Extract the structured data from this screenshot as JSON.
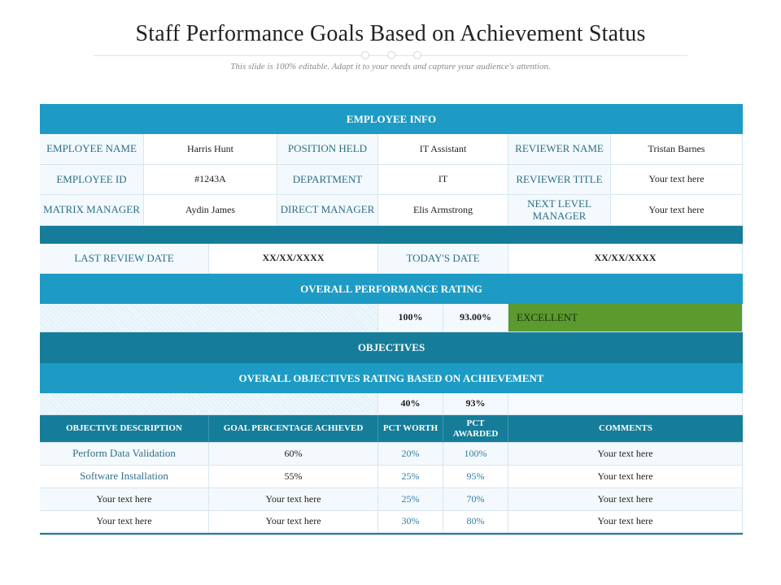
{
  "slide": {
    "title": "Staff Performance Goals Based on Achievement Status",
    "subtitle": "This slide is 100% editable. Adapt it to your needs and capture your audience's  attention."
  },
  "employee_info": {
    "header": "EMPLOYEE INFO",
    "rows": [
      {
        "l1": "EMPLOYEE NAME",
        "v1": "Harris Hunt",
        "l2": "POSITION HELD",
        "v2": "IT Assistant",
        "l3": "REVIEWER NAME",
        "v3": "Tristan Barnes"
      },
      {
        "l1": "EMPLOYEE ID",
        "v1": "#1243A",
        "l2": "DEPARTMENT",
        "v2": "IT",
        "l3": "REVIEWER TITLE",
        "v3": "Your text here"
      },
      {
        "l1": "MATRIX MANAGER",
        "v1": "Aydin James",
        "l2": "DIRECT MANAGER",
        "v2": "Elis Armstrong",
        "l3": "NEXT LEVEL MANAGER",
        "v3": "Your text here"
      }
    ]
  },
  "review_dates": {
    "last_label": "LAST REVIEW DATE",
    "last_value": "XX/XX/XXXX",
    "today_label": "TODAY'S DATE",
    "today_value": "XX/XX/XXXX"
  },
  "overall_performance": {
    "header": "OVERALL PERFORMANCE RATING",
    "weight": "100%",
    "score": "93.00%",
    "rating": "EXCELLENT",
    "rating_color": "#5b9a2e"
  },
  "objectives": {
    "header": "OBJECTIVES",
    "rating_header": "OVERALL OBJECTIVES RATING BASED ON ACHIEVEMENT",
    "total_worth": "40%",
    "total_awarded": "93%",
    "columns": [
      "OBJECTIVE  DESCRIPTION",
      "GOAL  PERCENTAGE ACHIEVED",
      "PCT WORTH",
      "PCT AWARDED",
      "COMMENTS"
    ],
    "rows": [
      {
        "description": "Perform Data Validation",
        "goal": "60%",
        "worth": "20%",
        "awarded": "100%",
        "comments": "Your text here"
      },
      {
        "description": "Software Installation",
        "goal": "55%",
        "worth": "25%",
        "awarded": "95%",
        "comments": "Your text here"
      },
      {
        "description": "Your text here",
        "goal": "Your text here",
        "worth": "25%",
        "awarded": "70%",
        "comments": "Your text here"
      },
      {
        "description": "Your text here",
        "goal": "Your text here",
        "worth": "30%",
        "awarded": "80%",
        "comments": "Your text here"
      }
    ]
  },
  "colors": {
    "band_cyan": "#1d9bc4",
    "band_teal": "#157d99",
    "label_text": "#2f6f86",
    "excellent_green": "#5b9a2e"
  }
}
